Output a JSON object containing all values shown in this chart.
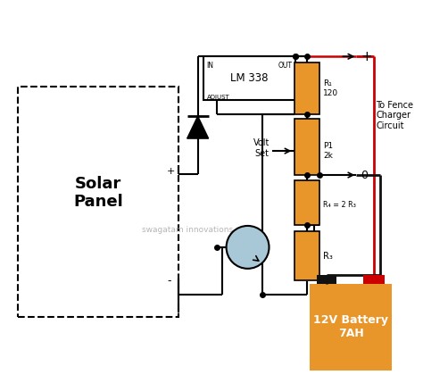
{
  "bg_color": "#ffffff",
  "line_color": "#000000",
  "resistor_color": "#E8962A",
  "battery_color": "#E8962A",
  "transistor_fill": "#A8C8D8",
  "ic_fill": "#ffffff",
  "wire_red": "#CC0000",
  "wire_black": "#111111",
  "solar_panel_label": "Solar\nPanel",
  "ic_label": "LM 338",
  "ic_in": "IN",
  "ic_out": "OUT",
  "ic_adj": "ADJUST",
  "r1_label": "R₁\n120",
  "p1_label": "P1\n2k",
  "r4_label": "R₄ = 2 R₃",
  "r3_label": "R₃",
  "volt_set_label": "Volt\nSet",
  "to_fence_label": "To Fence\nCharger\nCircuit",
  "plus_label": "+",
  "zero_label": "0",
  "battery_label": "12V Battery\n7AH",
  "watermark": "swagatam innovations"
}
